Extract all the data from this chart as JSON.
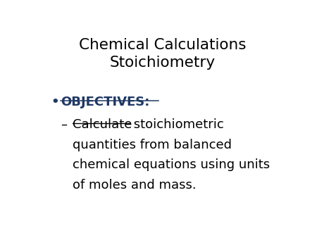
{
  "background_color": "#ffffff",
  "title_line1": "Chemical Calculations",
  "title_line2": "Stoichiometry",
  "title_color": "#000000",
  "title_fontsize": 15.5,
  "bullet_text": "OBJECTIVES:",
  "bullet_color": "#1f3864",
  "bullet_fontsize": 13.0,
  "body_color": "#000000",
  "body_fontsize": 13.0,
  "dash_char": "–",
  "calc_word": "Calculate",
  "stoich_rest": " stoichiometric",
  "body_lines": [
    "quantities from balanced",
    "chemical equations using units",
    "of moles and mass."
  ]
}
